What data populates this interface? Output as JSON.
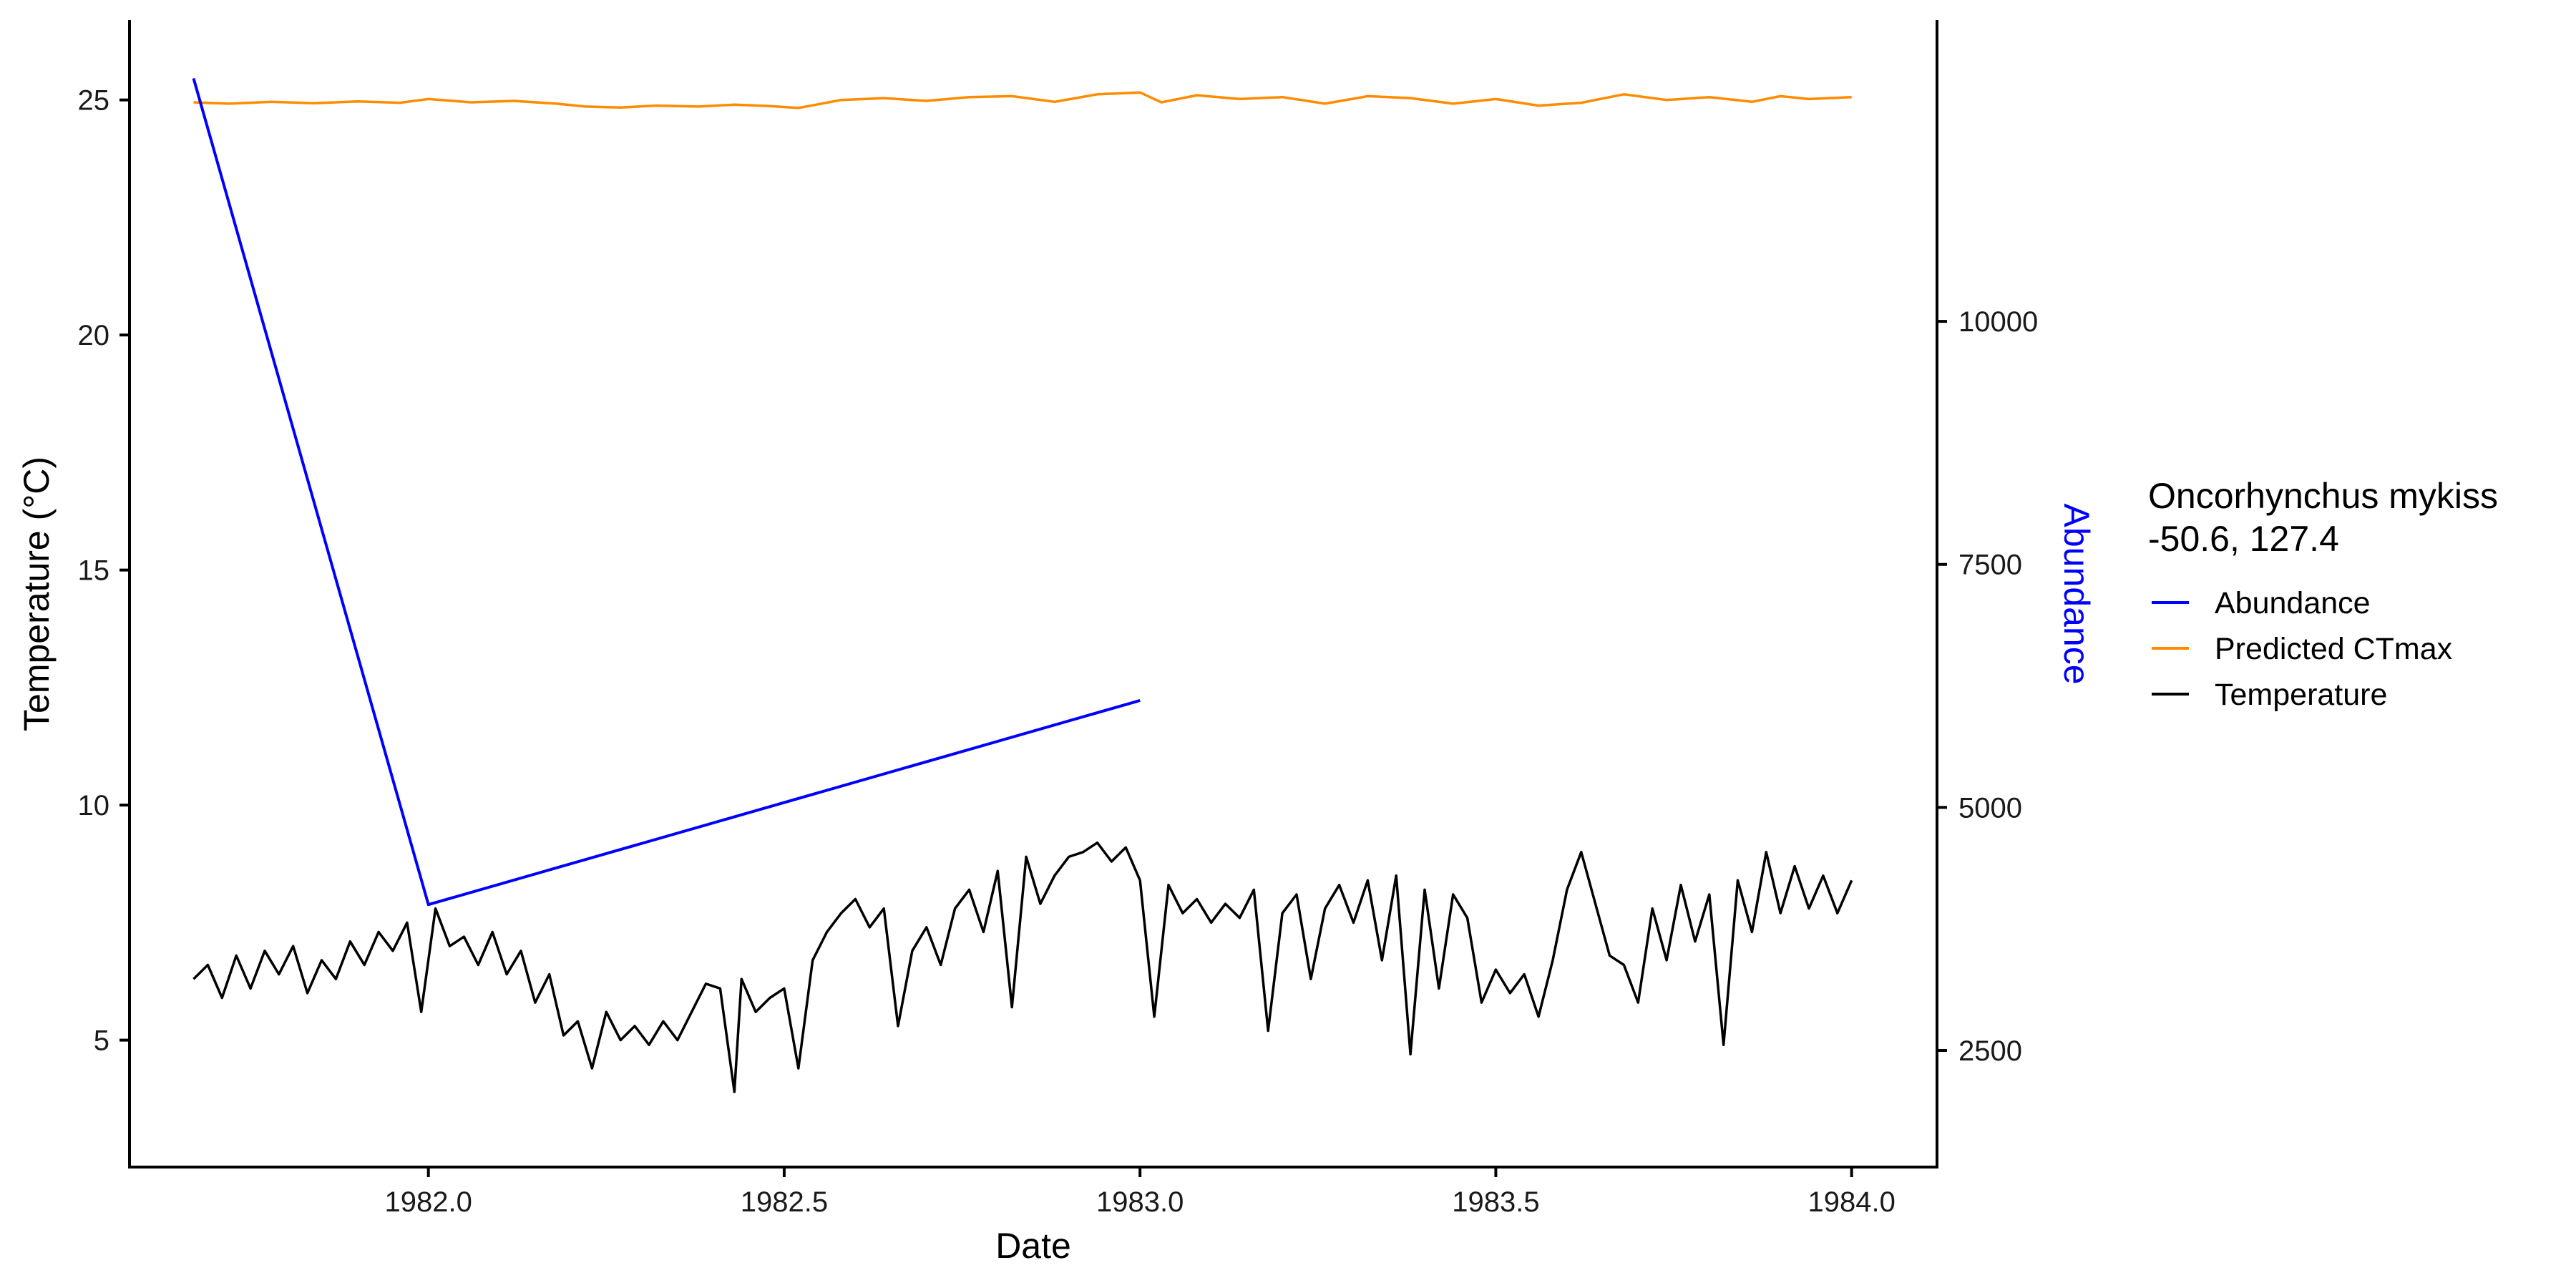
{
  "chart_data": {
    "type": "line",
    "xlabel": "Date",
    "ylabel": "Temperature (°C)",
    "y2label": "Abundance",
    "xlim": [
      1981.58,
      1984.12
    ],
    "ylim": [
      2.3,
      26.7
    ],
    "y2lim": [
      1300,
      13100
    ],
    "xticks": [
      1982.0,
      1982.5,
      1983.0,
      1983.5,
      1984.0
    ],
    "xtick_labels": [
      "1982.0",
      "1982.5",
      "1983.0",
      "1983.5",
      "1984.0"
    ],
    "yticks": [
      5,
      10,
      15,
      20,
      25
    ],
    "ytick_labels": [
      "5",
      "10",
      "15",
      "20",
      "25"
    ],
    "y2ticks": [
      2500,
      5000,
      7500,
      10000
    ],
    "y2tick_labels": [
      "2500",
      "5000",
      "7500",
      "10000"
    ],
    "grid": false,
    "legend": {
      "title_lines": [
        "Oncorhynchus mykiss",
        "-50.6, 127.4"
      ],
      "placement": "right",
      "entries": [
        "Abundance",
        "Predicted CTmax",
        "Temperature"
      ]
    },
    "colors": {
      "Abundance": "#0000ff",
      "Predicted CTmax": "#ff8c00",
      "Temperature": "#000000"
    },
    "series": [
      {
        "name": "Abundance",
        "axis": "right",
        "x": [
          1981.67,
          1982.0,
          1983.0
        ],
        "y": [
          12500,
          4000,
          6100
        ]
      },
      {
        "name": "Predicted CTmax",
        "axis": "left",
        "x": [
          1981.67,
          1981.72,
          1981.78,
          1981.84,
          1981.9,
          1981.96,
          1982.0,
          1982.06,
          1982.12,
          1982.18,
          1982.22,
          1982.27,
          1982.32,
          1982.38,
          1982.43,
          1982.48,
          1982.52,
          1982.58,
          1982.64,
          1982.7,
          1982.76,
          1982.82,
          1982.88,
          1982.94,
          1983.0,
          1983.03,
          1983.08,
          1983.14,
          1983.2,
          1983.26,
          1983.32,
          1983.38,
          1983.44,
          1983.5,
          1983.56,
          1983.62,
          1983.68,
          1983.74,
          1983.8,
          1983.86,
          1983.9,
          1983.94,
          1984.0
        ],
        "y": [
          24.95,
          24.92,
          24.96,
          24.93,
          24.97,
          24.94,
          25.02,
          24.95,
          24.98,
          24.92,
          24.86,
          24.84,
          24.88,
          24.86,
          24.9,
          24.87,
          24.83,
          25.0,
          25.04,
          24.98,
          25.06,
          25.08,
          24.96,
          25.12,
          25.16,
          24.95,
          25.1,
          25.02,
          25.06,
          24.92,
          25.08,
          25.04,
          24.92,
          25.02,
          24.88,
          24.94,
          25.12,
          25.0,
          25.06,
          24.96,
          25.08,
          25.02,
          25.06
        ]
      },
      {
        "name": "Temperature",
        "axis": "left",
        "x": [
          1981.67,
          1981.69,
          1981.71,
          1981.73,
          1981.75,
          1981.77,
          1981.79,
          1981.81,
          1981.83,
          1981.85,
          1981.87,
          1981.89,
          1981.91,
          1981.93,
          1981.95,
          1981.97,
          1981.99,
          1982.01,
          1982.03,
          1982.05,
          1982.07,
          1982.09,
          1982.11,
          1982.13,
          1982.15,
          1982.17,
          1982.19,
          1982.21,
          1982.23,
          1982.25,
          1982.27,
          1982.29,
          1982.31,
          1982.33,
          1982.35,
          1982.37,
          1982.39,
          1982.41,
          1982.43,
          1982.44,
          1982.46,
          1982.48,
          1982.5,
          1982.52,
          1982.54,
          1982.56,
          1982.58,
          1982.6,
          1982.62,
          1982.64,
          1982.66,
          1982.68,
          1982.7,
          1982.72,
          1982.74,
          1982.76,
          1982.78,
          1982.8,
          1982.82,
          1982.84,
          1982.86,
          1982.88,
          1982.9,
          1982.92,
          1982.94,
          1982.96,
          1982.98,
          1983.0,
          1983.02,
          1983.04,
          1983.06,
          1983.08,
          1983.1,
          1983.12,
          1983.14,
          1983.16,
          1983.18,
          1983.2,
          1983.22,
          1983.24,
          1983.26,
          1983.28,
          1983.3,
          1983.32,
          1983.34,
          1983.36,
          1983.38,
          1983.4,
          1983.42,
          1983.44,
          1983.46,
          1983.48,
          1983.5,
          1983.52,
          1983.54,
          1983.56,
          1983.58,
          1983.6,
          1983.62,
          1983.64,
          1983.66,
          1983.68,
          1983.7,
          1983.72,
          1983.74,
          1983.76,
          1983.78,
          1983.8,
          1983.82,
          1983.84,
          1983.86,
          1983.88,
          1983.9,
          1983.92,
          1983.94,
          1983.96,
          1983.98,
          1984.0
        ],
        "y": [
          6.3,
          6.6,
          5.9,
          6.8,
          6.1,
          6.9,
          6.4,
          7.0,
          6.0,
          6.7,
          6.3,
          7.1,
          6.6,
          7.3,
          6.9,
          7.5,
          5.6,
          7.8,
          7.0,
          7.2,
          6.6,
          7.3,
          6.4,
          6.9,
          5.8,
          6.4,
          5.1,
          5.4,
          4.4,
          5.6,
          5.0,
          5.3,
          4.9,
          5.4,
          5.0,
          5.6,
          6.2,
          6.1,
          3.9,
          6.3,
          5.6,
          5.9,
          6.1,
          4.4,
          6.7,
          7.3,
          7.7,
          8.0,
          7.4,
          7.8,
          5.3,
          6.9,
          7.4,
          6.6,
          7.8,
          8.2,
          7.3,
          8.6,
          5.7,
          8.9,
          7.9,
          8.5,
          8.9,
          9.0,
          9.2,
          8.8,
          9.1,
          8.4,
          5.5,
          8.3,
          7.7,
          8.0,
          7.5,
          7.9,
          7.6,
          8.2,
          5.2,
          7.7,
          8.1,
          6.3,
          7.8,
          8.3,
          7.5,
          8.4,
          6.7,
          8.5,
          4.7,
          8.2,
          6.1,
          8.1,
          7.6,
          5.8,
          6.5,
          6.0,
          6.4,
          5.5,
          6.7,
          8.2,
          9.0,
          7.9,
          6.8,
          6.6,
          5.8,
          7.8,
          6.7,
          8.3,
          7.1,
          8.1,
          4.9,
          8.4,
          7.3,
          9.0,
          7.7,
          8.7,
          7.8,
          8.5,
          7.7,
          8.4
        ]
      }
    ]
  }
}
